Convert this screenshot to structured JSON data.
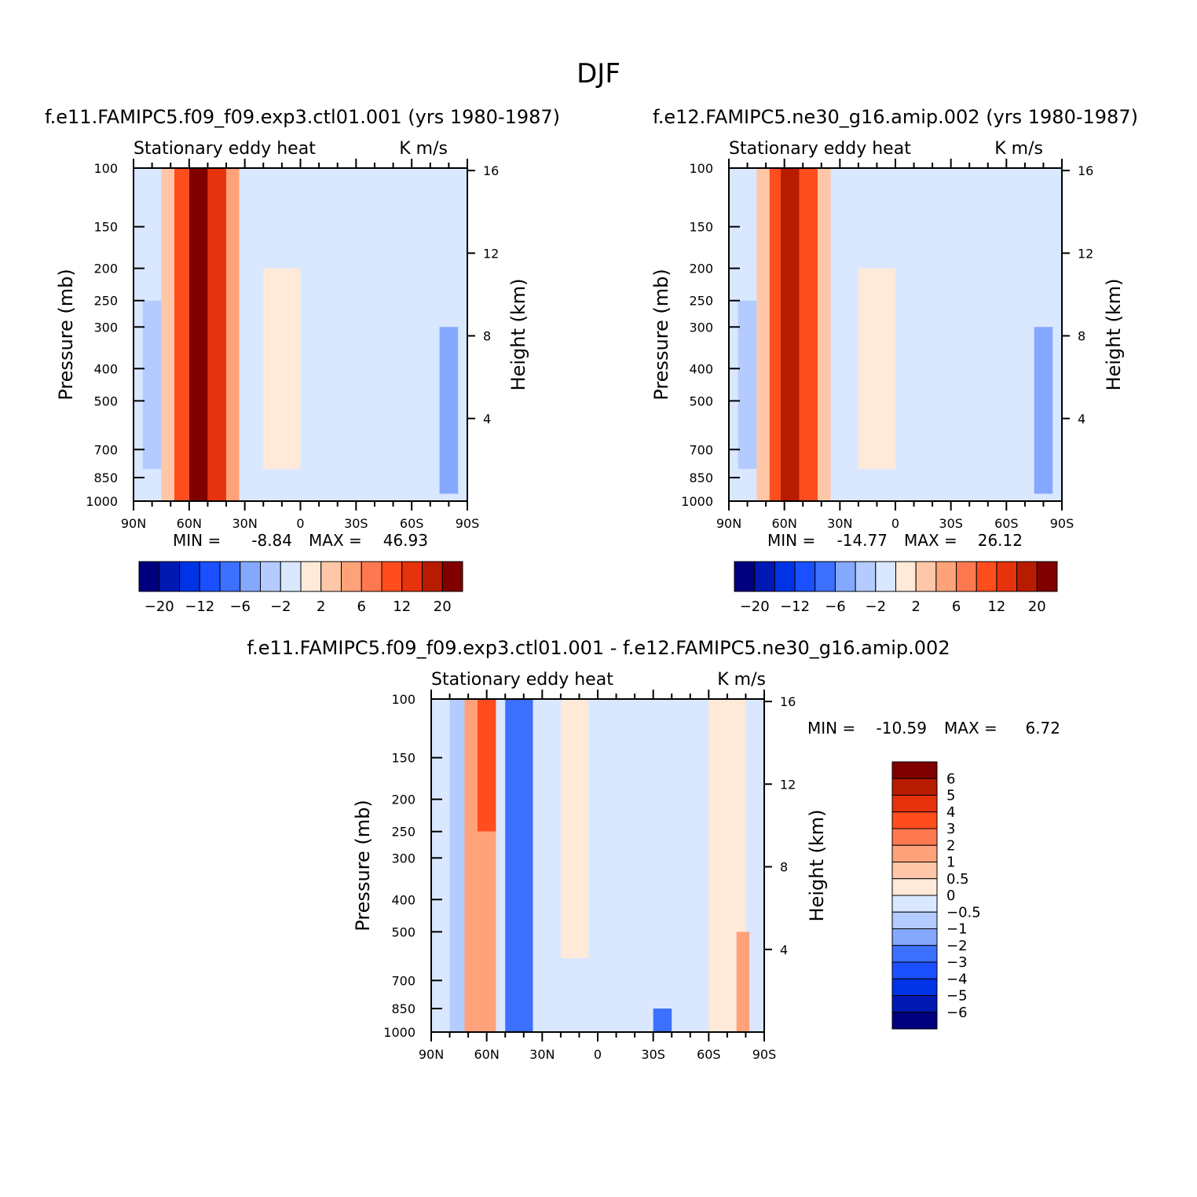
{
  "figure": {
    "title": "DJF",
    "pressure_ticks": [
      "100",
      "150",
      "200",
      "250",
      "300",
      "400",
      "500",
      "700",
      "850",
      "1000"
    ],
    "height_ticks": [
      "16",
      "12",
      "8",
      "4"
    ],
    "lat_ticks": [
      "90N",
      "60N",
      "30N",
      "0",
      "30S",
      "60S",
      "90S"
    ]
  },
  "colors": {
    "blue_to_red": [
      "#00007f",
      "#0019b2",
      "#0033e5",
      "#1a50ff",
      "#3d70ff",
      "#85a8ff",
      "#b3cbff",
      "#d9e8ff",
      "#ffead9",
      "#ffc7a8",
      "#ffa27a",
      "#ff7850",
      "#ff4d1e",
      "#e6330d",
      "#b81c00",
      "#800000"
    ]
  },
  "chart_data": [
    {
      "type": "heatmap",
      "panel_title": "f.e11.FAMIPC5.f09_f09.exp3.ctl01.001 (yrs 1980-1987)",
      "left_string": "Stationary eddy heat",
      "right_string": "K m/s",
      "ylabel": "Pressure (mb)",
      "ylabel2": "Height (km)",
      "x": [
        "90N",
        "60N",
        "30N",
        "0",
        "30S",
        "60S",
        "90S"
      ],
      "ylim": [
        1000,
        100
      ],
      "stats": {
        "min_label": "MIN =",
        "min": "-8.84",
        "max_label": "MAX =",
        "max": "46.93"
      },
      "colorbar_labels": [
        "-20",
        "-12",
        "-6",
        "-2",
        "2",
        "6",
        "12",
        "20"
      ],
      "colorbar_levels": [
        -20,
        -16,
        -12,
        -8,
        -6,
        -4,
        -2,
        0,
        2,
        4,
        6,
        8,
        12,
        16,
        20
      ],
      "bands": [
        {
          "lat": [
            75,
            68
          ],
          "value": 3
        },
        {
          "lat": [
            68,
            60
          ],
          "value": 10
        },
        {
          "lat": [
            60,
            50
          ],
          "value": 25
        },
        {
          "lat": [
            50,
            40
          ],
          "value": 14
        },
        {
          "lat": [
            40,
            33
          ],
          "value": 5
        },
        {
          "lat": [
            85,
            75
          ],
          "value": -3,
          "p": [
            250,
            800
          ]
        },
        {
          "lat": [
            20,
            0
          ],
          "value": 1,
          "p": [
            200,
            800
          ]
        },
        {
          "lat": [
            -75,
            -85
          ],
          "value": -4,
          "p": [
            300,
            950
          ]
        }
      ]
    },
    {
      "type": "heatmap",
      "panel_title": "f.e12.FAMIPC5.ne30_g16.amip.002 (yrs 1980-1987)",
      "left_string": "Stationary eddy heat",
      "right_string": "K m/s",
      "ylabel": "Pressure (mb)",
      "ylabel2": "Height (km)",
      "x": [
        "90N",
        "60N",
        "30N",
        "0",
        "30S",
        "60S",
        "90S"
      ],
      "ylim": [
        1000,
        100
      ],
      "stats": {
        "min_label": "MIN =",
        "min": "-14.77",
        "max_label": "MAX =",
        "max": "26.12"
      },
      "colorbar_labels": [
        "-20",
        "-12",
        "-6",
        "-2",
        "2",
        "6",
        "12",
        "20"
      ],
      "colorbar_levels": [
        -20,
        -16,
        -12,
        -8,
        -6,
        -4,
        -2,
        0,
        2,
        4,
        6,
        8,
        12,
        16,
        20
      ],
      "bands": [
        {
          "lat": [
            75,
            68
          ],
          "value": 3
        },
        {
          "lat": [
            68,
            62
          ],
          "value": 9
        },
        {
          "lat": [
            62,
            52
          ],
          "value": 18
        },
        {
          "lat": [
            52,
            42
          ],
          "value": 10
        },
        {
          "lat": [
            42,
            35
          ],
          "value": 4
        },
        {
          "lat": [
            85,
            75
          ],
          "value": -2,
          "p": [
            250,
            800
          ]
        },
        {
          "lat": [
            20,
            0
          ],
          "value": 1,
          "p": [
            200,
            800
          ]
        },
        {
          "lat": [
            -75,
            -85
          ],
          "value": -4,
          "p": [
            300,
            950
          ]
        }
      ]
    },
    {
      "type": "heatmap",
      "panel_title": "f.e11.FAMIPC5.f09_f09.exp3.ctl01.001 - f.e12.FAMIPC5.ne30_g16.amip.002",
      "left_string": "Stationary eddy heat",
      "right_string": "K m/s",
      "ylabel": "Pressure (mb)",
      "ylabel2": "Height (km)",
      "x": [
        "90N",
        "60N",
        "30N",
        "0",
        "30S",
        "60S",
        "90S"
      ],
      "ylim": [
        1000,
        100
      ],
      "stats": {
        "min_label": "MIN =",
        "min": "-10.59",
        "max_label": "MAX =",
        "max": "6.72"
      },
      "colorbar_labels": [
        "6",
        "5",
        "4",
        "3",
        "2",
        "1",
        "0.5",
        "0",
        "-0.5",
        "-1",
        "-2",
        "-3",
        "-4",
        "-5",
        "-6"
      ],
      "colorbar_levels": [
        -6,
        -5,
        -4,
        -3,
        -2,
        -1,
        -0.5,
        0,
        0.5,
        1,
        2,
        3,
        4,
        5,
        6
      ],
      "bands": [
        {
          "lat": [
            80,
            72
          ],
          "value": -0.7
        },
        {
          "lat": [
            72,
            65
          ],
          "value": 1.5
        },
        {
          "lat": [
            65,
            55
          ],
          "value": 3.5,
          "p": [
            100,
            250
          ]
        },
        {
          "lat": [
            65,
            55
          ],
          "value": 1.5,
          "p": [
            250,
            1000
          ]
        },
        {
          "lat": [
            50,
            35
          ],
          "value": -2.5
        },
        {
          "lat": [
            35,
            20
          ],
          "value": -0.3
        },
        {
          "lat": [
            20,
            5
          ],
          "value": 0.3,
          "p": [
            100,
            600
          ]
        },
        {
          "lat": [
            -30,
            -40
          ],
          "value": -2.5,
          "p": [
            850,
            1000
          ]
        },
        {
          "lat": [
            -60,
            -80
          ],
          "value": 0.3
        },
        {
          "lat": [
            -75,
            -82
          ],
          "value": 2,
          "p": [
            500,
            1000
          ]
        }
      ]
    }
  ]
}
